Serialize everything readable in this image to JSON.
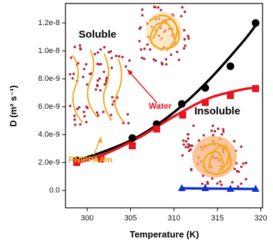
{
  "chart_data": {
    "type": "scatter",
    "x_label": "Temperature (K)",
    "y_label": "D (m² s⁻¹)",
    "xlim": [
      297.5,
      320.2
    ],
    "ylim": [
      -1.25e-09,
      1.34e-08
    ],
    "xticks": [
      300,
      305,
      310,
      315,
      320
    ],
    "yticks": [
      {
        "value": 0,
        "label": "0.0"
      },
      {
        "value": 2e-09,
        "label": "2.0e-9"
      },
      {
        "value": 4e-09,
        "label": "4.0e-9"
      },
      {
        "value": 6e-09,
        "label": "6.0e-9"
      },
      {
        "value": 8e-09,
        "label": "8.0e-9"
      },
      {
        "value": 1e-08,
        "label": "1.0e-8"
      },
      {
        "value": 1.2e-08,
        "label": "1.2e-8"
      }
    ],
    "series": [
      {
        "color": "#000000",
        "marker": "circle",
        "x": [
          298.8,
          305.2,
          308,
          310.9,
          313.6,
          316.5,
          319.4
        ],
        "values": [
          2.15e-09,
          3.75e-09,
          4.75e-09,
          6.2e-09,
          7.35e-09,
          8.9e-09,
          1.2e-08
        ]
      },
      {
        "color": "#e8141e",
        "marker": "square",
        "x": [
          298.8,
          301.6,
          305.2,
          308,
          311,
          313.6,
          316.5,
          319.4
        ],
        "values": [
          2e-09,
          2.25e-09,
          3.2e-09,
          4.4e-09,
          5.4e-09,
          6.3e-09,
          6.8e-09,
          7.3e-09
        ]
      },
      {
        "color": "#1030d0",
        "marker": "triangle",
        "x": [
          310.9,
          313.6,
          316.5,
          319.4
        ],
        "values": [
          1.5e-10,
          1.5e-10,
          1e-10,
          1e-10
        ]
      }
    ],
    "fits": [
      {
        "color": "#000000",
        "x": [
          298.5,
          302,
          306,
          310,
          314,
          318,
          319.6
        ],
        "values": [
          2.1e-09,
          2.8e-09,
          3.9e-09,
          5.6e-09,
          7.9e-09,
          1.07e-08,
          1.2e-08
        ]
      },
      {
        "color": "#e8141e",
        "x": [
          298.5,
          302,
          306,
          310,
          314,
          318,
          319.6
        ],
        "values": [
          1.9e-09,
          2.6e-09,
          3.8e-09,
          5.3e-09,
          6.6e-09,
          7.25e-09,
          7.35e-09
        ]
      },
      {
        "color": "#1030d0",
        "x": [
          310.8,
          319.6
        ],
        "values": [
          1.5e-10,
          1e-10
        ]
      }
    ],
    "annotations": [
      {
        "text": "Soluble",
        "color": "#000000"
      },
      {
        "text": "Insoluble",
        "color": "#000000"
      },
      {
        "text": "Water",
        "color": "#e8141e"
      },
      {
        "text": "PNIPPAAm",
        "color": "#f5a623"
      }
    ]
  }
}
